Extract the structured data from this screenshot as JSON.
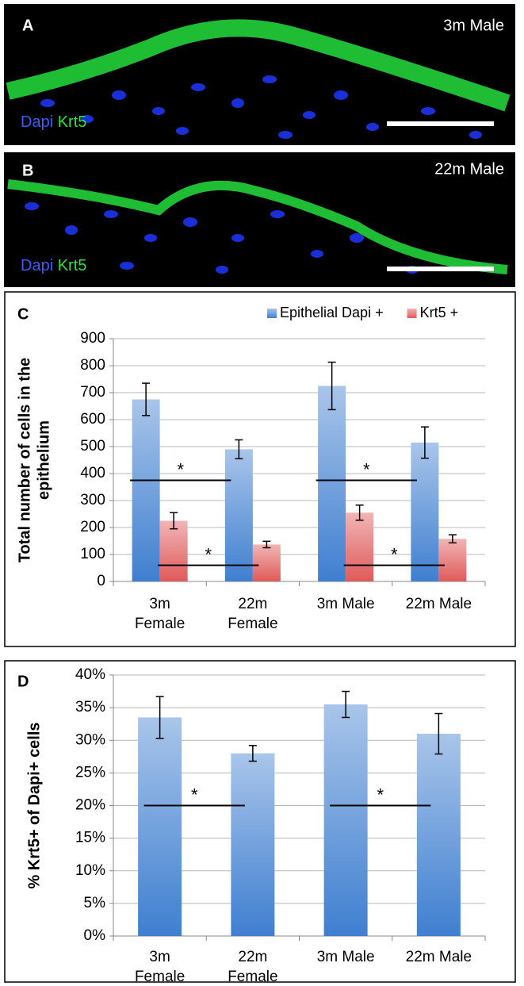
{
  "images": [
    {
      "letter": "A",
      "label": "3m Male",
      "stains": [
        "Dapi",
        "Krt5"
      ]
    },
    {
      "letter": "B",
      "label": "22m Male",
      "stains": [
        "Dapi",
        "Krt5"
      ]
    }
  ],
  "chart_data": [
    {
      "type": "bar",
      "panel_label": "C",
      "y_label": [
        "Total number of cells in the",
        "epithelium"
      ],
      "categories": [
        [
          "3m",
          "Female"
        ],
        [
          "22m",
          "Female"
        ],
        [
          "3m Male"
        ],
        [
          "22m Male"
        ]
      ],
      "series": [
        {
          "name": "Epithelial Dapi +",
          "color": "#3f7fd0",
          "values": [
            675,
            490,
            725,
            515
          ],
          "errors": [
            60,
            35,
            88,
            58
          ]
        },
        {
          "name": "Krt5 +",
          "color": "#e05a5a",
          "values": [
            225,
            137,
            255,
            158
          ],
          "errors": [
            30,
            12,
            28,
            15
          ]
        }
      ],
      "ylim": [
        0,
        900
      ],
      "yticks": [
        0,
        100,
        200,
        300,
        400,
        500,
        600,
        700,
        800,
        900
      ],
      "grid": true,
      "legend": "top-right",
      "annotations": [
        {
          "label": "*",
          "y": 375,
          "series": 0,
          "from": 0,
          "to": 1
        },
        {
          "label": "*",
          "y": 60,
          "series": 1,
          "from": 0,
          "to": 1
        },
        {
          "label": "*",
          "y": 375,
          "series": 0,
          "from": 2,
          "to": 3
        },
        {
          "label": "*",
          "y": 60,
          "series": 1,
          "from": 2,
          "to": 3
        }
      ]
    },
    {
      "type": "bar",
      "panel_label": "D",
      "y_label": [
        "% Krt5+ of Dapi+ cells"
      ],
      "categories": [
        [
          "3m",
          "Female"
        ],
        [
          "22m",
          "Female"
        ],
        [
          "3m Male"
        ],
        [
          "22m Male"
        ]
      ],
      "series": [
        {
          "color": "#3f7fd0",
          "values": [
            33.5,
            28,
            35.5,
            31
          ],
          "errors": [
            3.2,
            1.2,
            2,
            3.1
          ]
        }
      ],
      "ylim": [
        0,
        40
      ],
      "yticks": [
        {
          "value": 0,
          "label": "0%"
        },
        {
          "value": 5,
          "label": "5%"
        },
        {
          "value": 10,
          "label": "10%"
        },
        {
          "value": 15,
          "label": "15%"
        },
        {
          "value": 20,
          "label": "20%"
        },
        {
          "value": 25,
          "label": "25%"
        },
        {
          "value": 30,
          "label": "30%"
        },
        {
          "value": 35,
          "label": "35%"
        },
        {
          "value": 40,
          "label": "40%"
        }
      ],
      "grid": true,
      "annotations": [
        {
          "label": "*",
          "y": 20,
          "series": 0,
          "from": 0,
          "to": 1
        },
        {
          "label": "*",
          "y": 20,
          "series": 0,
          "from": 2,
          "to": 3
        }
      ]
    }
  ]
}
